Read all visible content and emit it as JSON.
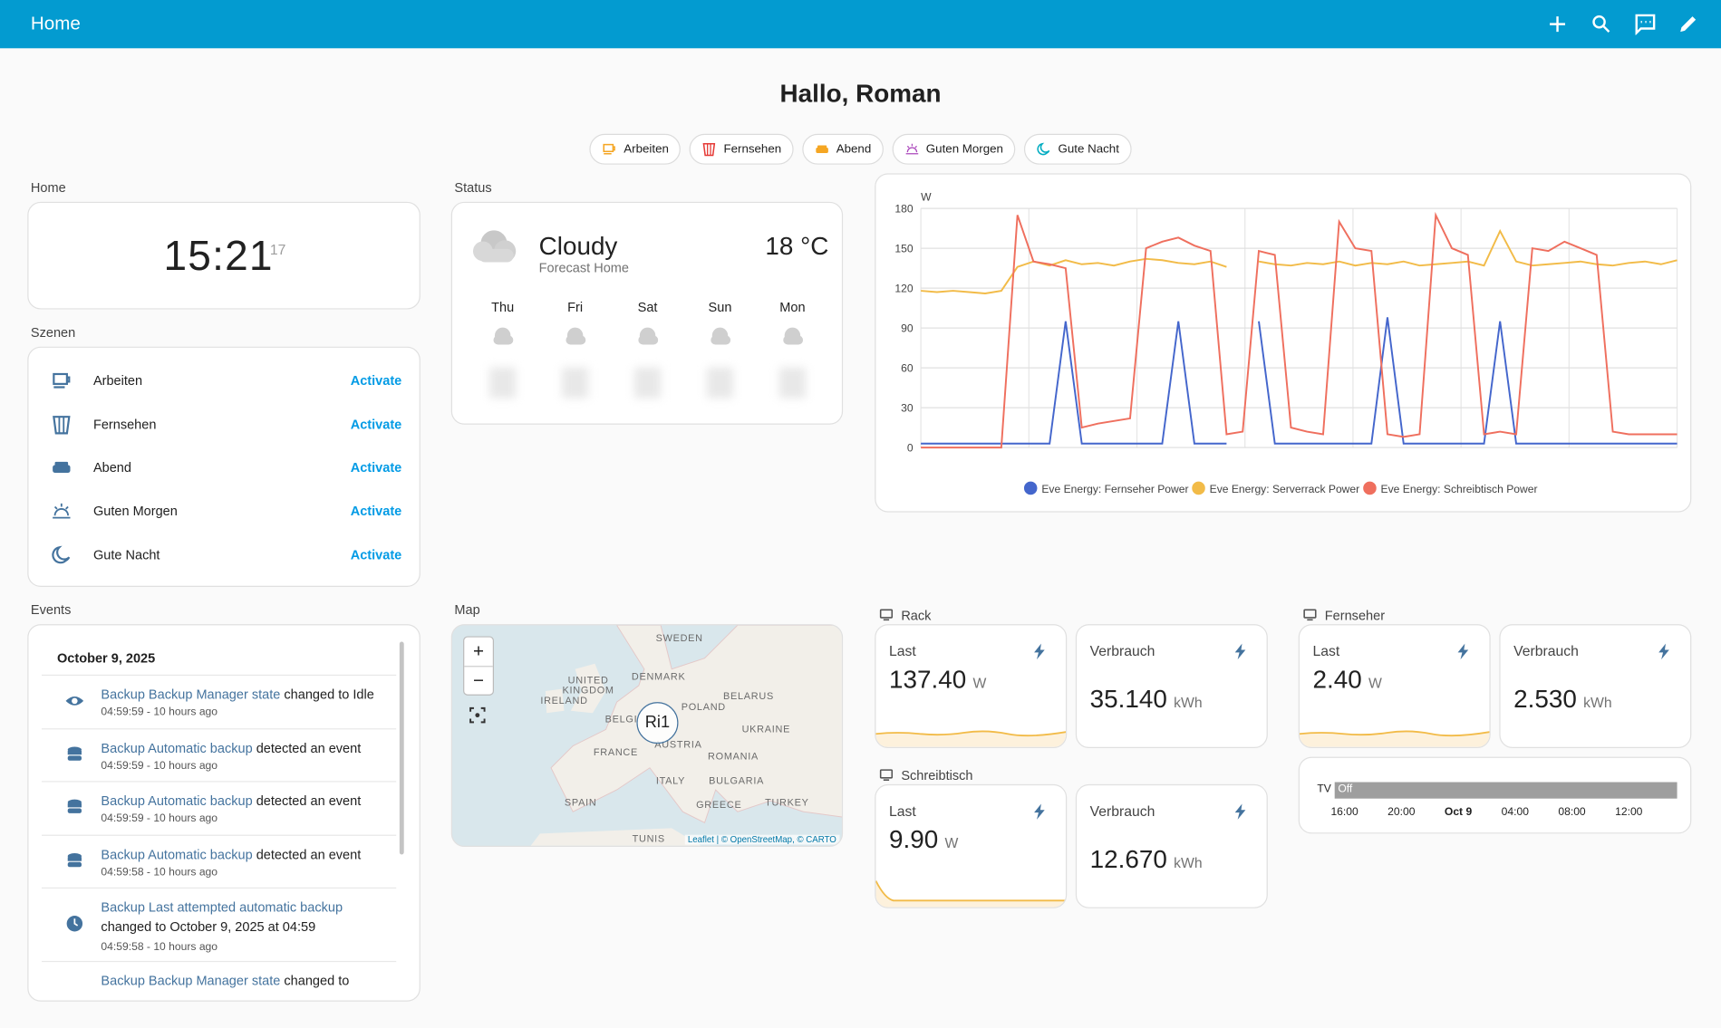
{
  "header": {
    "title": "Home"
  },
  "greeting": "Hallo, Roman",
  "scene_chips": [
    "Arbeiten",
    "Fernsehen",
    "Abend",
    "Guten Morgen",
    "Gute Nacht"
  ],
  "home": {
    "label": "Home",
    "time": "15:21",
    "seconds": "17"
  },
  "status": {
    "label": "Status",
    "condition": "Cloudy",
    "location": "Forecast Home",
    "temperature": "18 °C",
    "days": [
      "Thu",
      "Fri",
      "Sat",
      "Sun",
      "Mon"
    ]
  },
  "scenes": {
    "label": "Szenen",
    "items": [
      {
        "name": "Arbeiten",
        "action": "Activate"
      },
      {
        "name": "Fernsehen",
        "action": "Activate"
      },
      {
        "name": "Abend",
        "action": "Activate"
      },
      {
        "name": "Guten Morgen",
        "action": "Activate"
      },
      {
        "name": "Gute Nacht",
        "action": "Activate"
      }
    ]
  },
  "events": {
    "label": "Events",
    "date": "October 9, 2025",
    "items": [
      {
        "entity": "Backup Backup Manager state",
        "text": "changed to Idle",
        "time": "04:59:59 - 10 hours ago"
      },
      {
        "entity": "Backup Automatic backup",
        "text": "detected an event",
        "time": "04:59:59 - 10 hours ago"
      },
      {
        "entity": "Backup Automatic backup",
        "text": "detected an event",
        "time": "04:59:59 - 10 hours ago"
      },
      {
        "entity": "Backup Automatic backup",
        "text": "detected an event",
        "time": "04:59:58 - 10 hours ago"
      },
      {
        "entity": "Backup Last attempted automatic backup",
        "text": "changed to October 9, 2025 at 04:59",
        "time": "04:59:58 - 10 hours ago"
      },
      {
        "entity": "Backup Backup Manager state",
        "text": "changed to"
      }
    ]
  },
  "map": {
    "label": "Map",
    "zoom_in": "+",
    "zoom_out": "−",
    "marker": "Ri1",
    "attribution": "Leaflet | © OpenStreetMap, © CARTO",
    "places": [
      "SWEDEN",
      "DENMARK",
      "UNITED KINGDOM",
      "IRELAND",
      "POLAND",
      "BELARUS",
      "BELGI",
      "UKRAINE",
      "FRANCE",
      "AUSTRIA",
      "ROMANIA",
      "ITALY",
      "BULGARIA",
      "SPAIN",
      "GREECE",
      "TURKEY",
      "TUNIS"
    ]
  },
  "energy": [
    {
      "label": "Rack",
      "cards": [
        {
          "title": "Last",
          "value": "137.40",
          "unit": "W"
        },
        {
          "title": "Verbrauch",
          "value": "35.140",
          "unit": "kWh"
        }
      ]
    },
    {
      "label": "Schreibtisch",
      "cards": [
        {
          "title": "Last",
          "value": "9.90",
          "unit": "W"
        },
        {
          "title": "Verbrauch",
          "value": "12.670",
          "unit": "kWh"
        }
      ]
    },
    {
      "label": "Fernseher",
      "cards": [
        {
          "title": "Last",
          "value": "2.40",
          "unit": "W"
        },
        {
          "title": "Verbrauch",
          "value": "2.530",
          "unit": "kWh"
        }
      ]
    }
  ],
  "timeline": {
    "entity": "TV",
    "state": "Off",
    "ticks": [
      "16:00",
      "20:00",
      "Oct 9",
      "04:00",
      "08:00",
      "12:00"
    ]
  },
  "chart_data": {
    "type": "line",
    "y_unit": "W",
    "ylim": [
      0,
      180
    ],
    "yticks": [
      0,
      30,
      60,
      90,
      120,
      150,
      180
    ],
    "grid": true,
    "series": [
      {
        "name": "Eve Energy: Fernseher Power",
        "color": "#4466cc",
        "values": [
          3,
          3,
          3,
          3,
          3,
          3,
          3,
          3,
          3,
          95,
          3,
          3,
          3,
          3,
          3,
          3,
          95,
          3,
          3,
          3,
          null,
          95,
          3,
          3,
          3,
          3,
          3,
          3,
          3,
          98,
          3,
          3,
          3,
          3,
          3,
          3,
          95,
          3,
          3,
          3,
          3,
          3,
          3,
          3,
          3,
          3,
          3,
          3
        ]
      },
      {
        "name": "Eve Energy: Serverrack Power",
        "color": "#f2bb48",
        "values": [
          118,
          117,
          118,
          117,
          116,
          118,
          136,
          140,
          137,
          141,
          138,
          139,
          137,
          140,
          142,
          141,
          139,
          138,
          140,
          136,
          null,
          140,
          138,
          137,
          139,
          138,
          140,
          137,
          139,
          138,
          140,
          137,
          138,
          139,
          140,
          137,
          163,
          140,
          137,
          138,
          139,
          140,
          138,
          137,
          139,
          140,
          138,
          141
        ]
      },
      {
        "name": "Eve Energy: Schreibtisch Power",
        "color": "#ef6f5e",
        "values": [
          0,
          0,
          0,
          0,
          0,
          0,
          175,
          140,
          138,
          135,
          15,
          18,
          20,
          22,
          150,
          155,
          158,
          152,
          148,
          10,
          12,
          148,
          145,
          15,
          12,
          10,
          170,
          150,
          148,
          10,
          8,
          10,
          175,
          150,
          145,
          10,
          12,
          10,
          150,
          148,
          155,
          150,
          145,
          12,
          10,
          10,
          10,
          10
        ]
      }
    ]
  }
}
